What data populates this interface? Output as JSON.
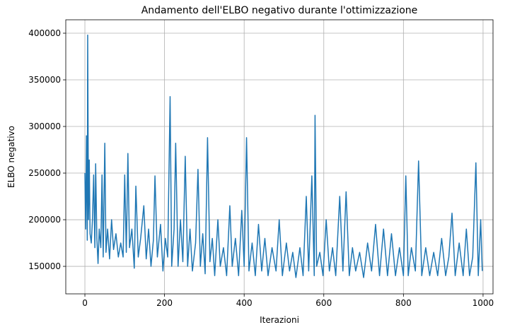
{
  "chart_data": {
    "type": "line",
    "title": "Andamento dell'ELBO negativo durante l'ottimizzazione",
    "xlabel": "Iterazioni",
    "ylabel": "ELBO negativo",
    "x": [
      0,
      2,
      4,
      6,
      7,
      9,
      11,
      13,
      16,
      19,
      22,
      25,
      27,
      30,
      33,
      36,
      40,
      43,
      46,
      50,
      53,
      57,
      62,
      67,
      72,
      78,
      84,
      90,
      96,
      100,
      104,
      108,
      112,
      118,
      124,
      128,
      134,
      140,
      148,
      154,
      160,
      166,
      172,
      176,
      182,
      190,
      196,
      202,
      208,
      214,
      218,
      224,
      228,
      234,
      240,
      246,
      252,
      258,
      264,
      270,
      278,
      284,
      290,
      296,
      302,
      308,
      314,
      320,
      326,
      334,
      340,
      348,
      356,
      364,
      370,
      378,
      386,
      394,
      400,
      406,
      412,
      420,
      428,
      436,
      444,
      452,
      460,
      470,
      480,
      488,
      496,
      506,
      514,
      522,
      530,
      540,
      548,
      556,
      562,
      570,
      576,
      578,
      582,
      590,
      598,
      606,
      614,
      622,
      630,
      640,
      648,
      656,
      664,
      672,
      680,
      690,
      700,
      710,
      720,
      730,
      740,
      750,
      760,
      770,
      780,
      790,
      800,
      806,
      812,
      820,
      830,
      838,
      846,
      856,
      866,
      876,
      886,
      896,
      906,
      914,
      922,
      930,
      940,
      950,
      958,
      966,
      974,
      982,
      988,
      994,
      998
    ],
    "series": [
      {
        "name": "ELBO negativo",
        "color": "#1f77b4",
        "values": [
          250000,
          190000,
          290000,
          178000,
          398000,
          200000,
          264000,
          185000,
          175000,
          200000,
          248000,
          170000,
          260000,
          180000,
          153000,
          190000,
          170000,
          248000,
          160000,
          282000,
          165000,
          190000,
          158000,
          200000,
          168000,
          185000,
          160000,
          175000,
          160000,
          248000,
          165000,
          271000,
          170000,
          190000,
          148000,
          236000,
          160000,
          180000,
          215000,
          158000,
          190000,
          150000,
          178000,
          247000,
          160000,
          195000,
          145000,
          180000,
          160000,
          332000,
          150000,
          190000,
          282000,
          150000,
          200000,
          155000,
          268000,
          150000,
          190000,
          145000,
          175000,
          254000,
          150000,
          185000,
          142000,
          288000,
          155000,
          180000,
          140000,
          200000,
          150000,
          170000,
          140000,
          215000,
          150000,
          180000,
          140000,
          210000,
          150000,
          288000,
          145000,
          175000,
          140000,
          195000,
          145000,
          180000,
          140000,
          170000,
          145000,
          200000,
          140000,
          175000,
          145000,
          165000,
          138000,
          170000,
          140000,
          225000,
          145000,
          247000,
          140000,
          312000,
          150000,
          165000,
          140000,
          200000,
          145000,
          170000,
          140000,
          225000,
          145000,
          230000,
          140000,
          170000,
          145000,
          165000,
          138000,
          175000,
          145000,
          195000,
          140000,
          190000,
          140000,
          185000,
          140000,
          170000,
          140000,
          247000,
          140000,
          170000,
          145000,
          263000,
          140000,
          170000,
          140000,
          165000,
          140000,
          180000,
          140000,
          160000,
          207000,
          140000,
          175000,
          140000,
          190000,
          140000,
          160000,
          261000,
          140000,
          200000,
          145000
        ]
      }
    ],
    "xlim": [
      -48,
      1025
    ],
    "ylim": [
      120500,
      414400
    ],
    "xticks": [
      0,
      200,
      400,
      600,
      800,
      1000
    ],
    "yticks": [
      150000,
      200000,
      250000,
      300000,
      350000,
      400000
    ],
    "grid": true
  }
}
